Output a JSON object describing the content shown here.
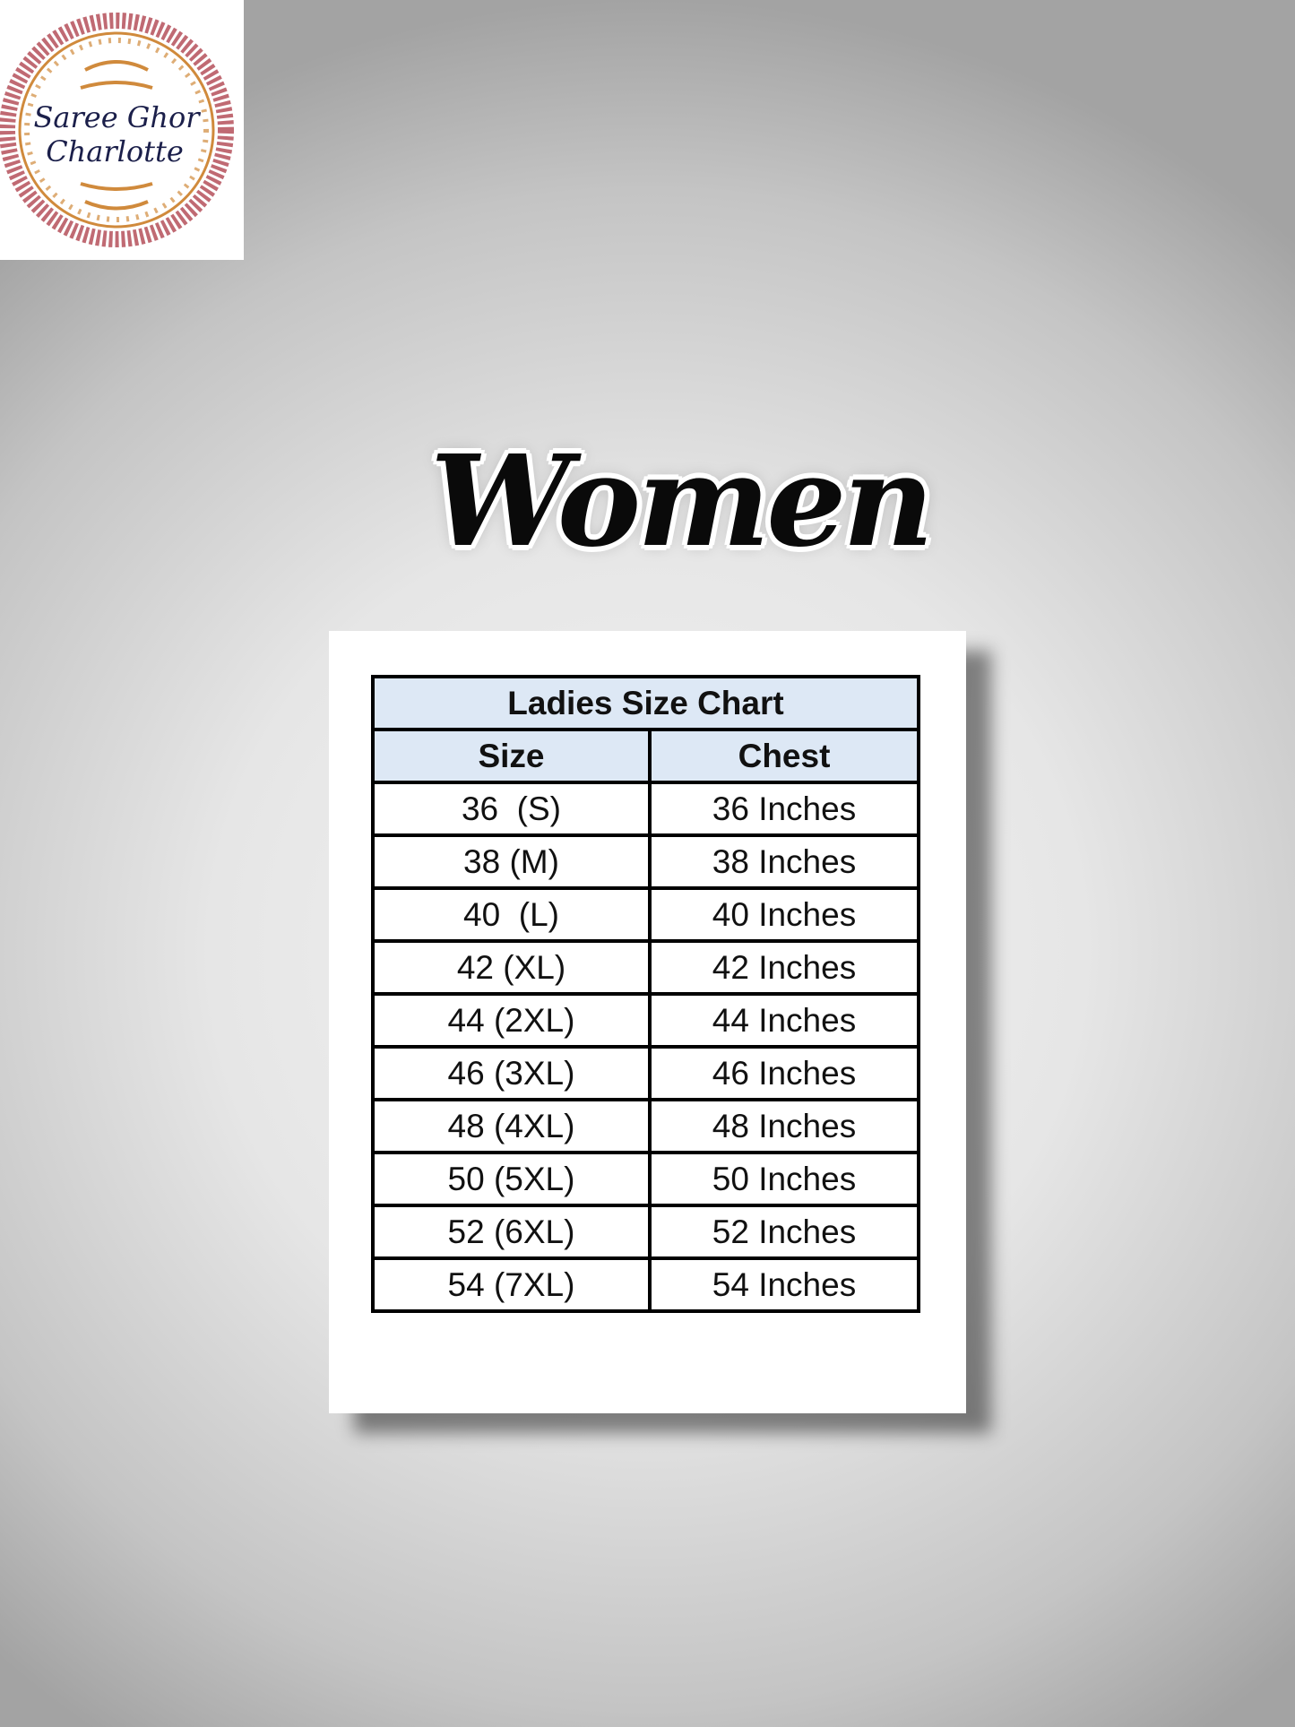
{
  "logo": {
    "text_line1": "Saree Ghor",
    "text_line2": "Charlotte",
    "colors": {
      "ring": "#b5505a",
      "ornament": "#d08a3c",
      "text": "#1b1f4a"
    }
  },
  "heading": "Women",
  "table": {
    "title": "Ladies Size Chart",
    "headers": [
      "Size",
      "Chest"
    ],
    "header_bg": "#dde8f5",
    "rows": [
      [
        "36  (S)",
        "36 Inches"
      ],
      [
        "38 (M)",
        "38 Inches"
      ],
      [
        "40  (L)",
        "40 Inches"
      ],
      [
        "42 (XL)",
        "42 Inches"
      ],
      [
        "44 (2XL)",
        "44 Inches"
      ],
      [
        "46 (3XL)",
        "46 Inches"
      ],
      [
        "48 (4XL)",
        "48 Inches"
      ],
      [
        "50 (5XL)",
        "50 Inches"
      ],
      [
        "52 (6XL)",
        "52 Inches"
      ],
      [
        "54 (7XL)",
        "54 Inches"
      ]
    ]
  }
}
